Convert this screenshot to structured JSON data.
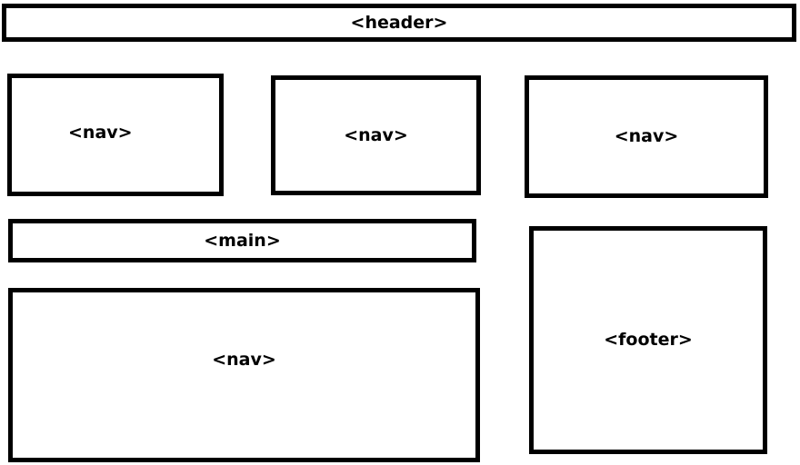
{
  "blocks": {
    "header": {
      "label": "<header>"
    },
    "nav_1": {
      "label": "<nav>"
    },
    "nav_2": {
      "label": "<nav>"
    },
    "nav_3": {
      "label": "<nav>"
    },
    "main": {
      "label": "<main>"
    },
    "nav_4": {
      "label": "<nav>"
    },
    "footer": {
      "label": "<footer>"
    }
  }
}
